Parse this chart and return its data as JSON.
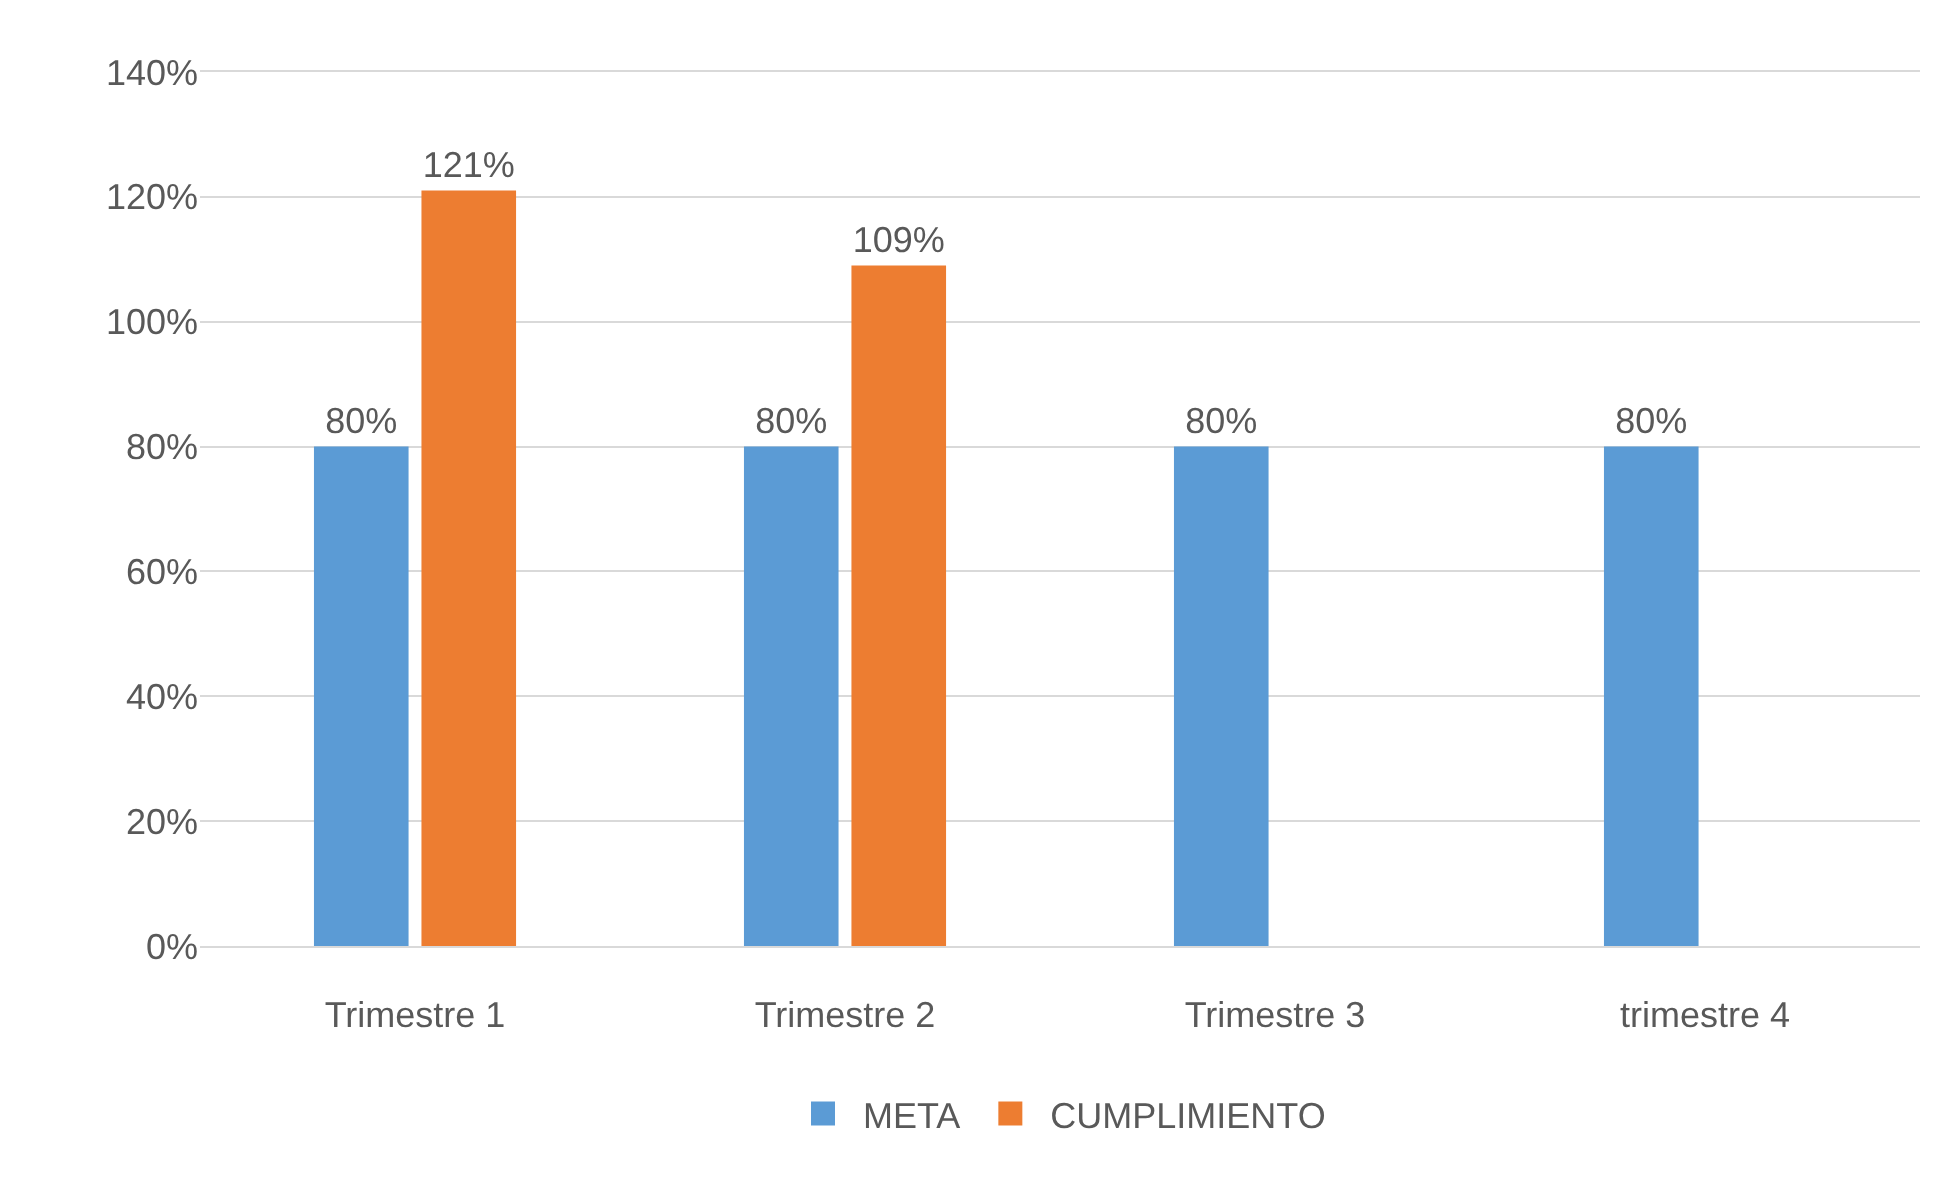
{
  "chart_data": {
    "type": "bar",
    "categories": [
      "Trimestre 1",
      "Trimestre 2",
      "Trimestre 3",
      "trimestre 4"
    ],
    "series": [
      {
        "name": "META",
        "color": "#5b9bd5",
        "values": [
          80,
          80,
          80,
          80
        ],
        "value_labels": [
          "80%",
          "80%",
          "80%",
          "80%"
        ]
      },
      {
        "name": "CUMPLIMIENTO",
        "color": "#ed7d31",
        "values": [
          121,
          109,
          null,
          null
        ],
        "value_labels": [
          "121%",
          "109%",
          null,
          null
        ]
      }
    ],
    "ylim": [
      0,
      140
    ],
    "yticks": [
      {
        "value": 0,
        "label": "0%"
      },
      {
        "value": 20,
        "label": "20%"
      },
      {
        "value": 40,
        "label": "40%"
      },
      {
        "value": 60,
        "label": "60%"
      },
      {
        "value": 80,
        "label": "80%"
      },
      {
        "value": 100,
        "label": "100%"
      },
      {
        "value": 120,
        "label": "120%"
      },
      {
        "value": 140,
        "label": "140%"
      }
    ],
    "grid": "y",
    "legend": "bottom"
  }
}
